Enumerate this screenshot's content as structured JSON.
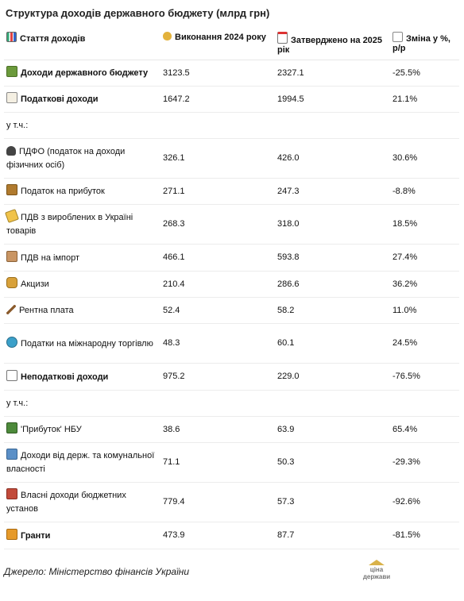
{
  "title": "Структура доходів державного бюджету (млрд грн)",
  "header": {
    "col1": "Стаття доходів",
    "col2": "Виконання 2024 року",
    "col3": "Затверджено на 2025 рік",
    "col4": "Зміна у %, р/р"
  },
  "rows": [
    {
      "label": "Доходи державного бюджету",
      "v2024": "3123.5",
      "v2025": "2327.1",
      "change": "-25.5%",
      "icon": "cash-icon"
    },
    {
      "label": "Податкові доходи",
      "v2024": "1647.2",
      "v2025": "1994.5",
      "change": "21.1%",
      "icon": "receipt-icon"
    },
    {
      "label": "у т.ч.:",
      "v2024": "",
      "v2025": "",
      "change": ""
    },
    {
      "label": "ПДФО (податок на доходи фізичних осіб)",
      "v2024": "326.1",
      "v2025": "426.0",
      "change": "30.6%",
      "icon": "people-icon"
    },
    {
      "label": "Податок на прибуток",
      "v2024": "271.1",
      "v2025": "247.3",
      "change": "-8.8%",
      "icon": "briefcase-icon"
    },
    {
      "label": "ПДВ з вироблених в Україні товарів",
      "v2024": "268.3",
      "v2025": "318.0",
      "change": "18.5%",
      "icon": "tag-icon"
    },
    {
      "label": "ПДВ на імпорт",
      "v2024": "466.1",
      "v2025": "593.8",
      "change": "27.4%",
      "icon": "package-icon"
    },
    {
      "label": "Акцизи",
      "v2024": "210.4",
      "v2025": "286.6",
      "change": "36.2%",
      "icon": "barrel-icon"
    },
    {
      "label": "Рентна плата",
      "v2024": "52.4",
      "v2025": "58.2",
      "change": "11.0%",
      "icon": "pickaxe-icon"
    },
    {
      "label": "Податки на міжнародну торгівлю",
      "v2024": "48.3",
      "v2025": "60.1",
      "change": "24.5%",
      "icon": "globe-icon"
    },
    {
      "label": "Неподаткові доходи",
      "v2024": "975.2",
      "v2025": "229.0",
      "change": "-76.5%",
      "icon": "chart-down-icon"
    },
    {
      "label": "у т.ч.:",
      "v2024": "",
      "v2025": "",
      "change": ""
    },
    {
      "label": "'Прибуток' НБУ",
      "v2024": "38.6",
      "v2025": "63.9",
      "change": "65.4%",
      "icon": "bank-icon"
    },
    {
      "label": "Доходи від держ. та комунальної власності",
      "v2024": "71.1",
      "v2025": "50.3",
      "change": "-29.3%",
      "icon": "building-icon"
    },
    {
      "label": "Власні доходи бюджетних установ",
      "v2024": "779.4",
      "v2025": "57.3",
      "change": "-92.6%",
      "icon": "school-icon"
    },
    {
      "label": "Гранти",
      "v2024": "473.9",
      "v2025": "87.7",
      "change": "-81.5%",
      "icon": "gift-icon"
    }
  ],
  "footer": "Джерело: Міністерство фінансів України",
  "logo": {
    "line1": "ціна",
    "line2": "держави"
  }
}
